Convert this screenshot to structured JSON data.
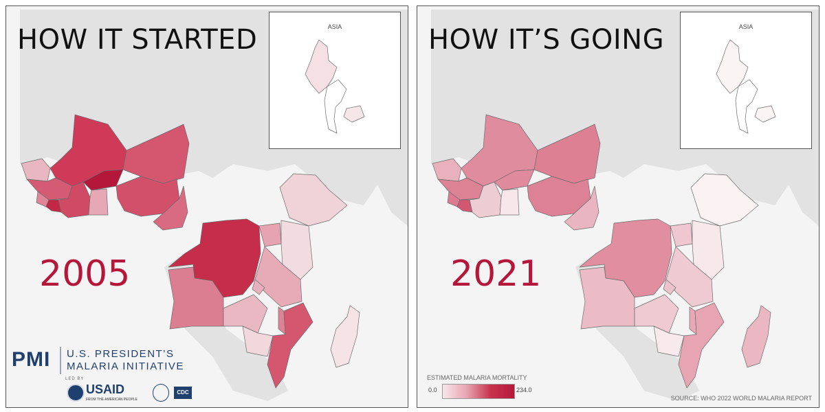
{
  "panels": [
    {
      "headline": "HOW IT STARTED",
      "year": "2005",
      "inset_label": "ASIA",
      "fills": {
        "senegal": "#e9b7c1",
        "mali": "#cf3a58",
        "niger": "#d4566f",
        "guinea": "#d55a73",
        "sierra_leone": "#e08598",
        "liberia": "#c22845",
        "ivory_coast": "#d14a65",
        "burkina_faso": "#b5173b",
        "ghana": "#e7a8b5",
        "nigeria": "#d2506a",
        "cameroon": "#d86b81",
        "drc": "#c52d4a",
        "angola": "#dc7e92",
        "ethiopia": "#f0d3d9",
        "uganda": "#e6a4b2",
        "kenya": "#f3dce1",
        "tanzania": "#e7aab7",
        "zambia": "#eab8c3",
        "rwanda": "#e8afbc",
        "malawi": "#de8296",
        "mozambique": "#d4566f",
        "zimbabwe": "#f2d7dd",
        "madagascar": "#f5e3e7",
        "myanmar": "#f4e0e5",
        "thailand": "#ffffff",
        "cambodia": "#f6e5e9"
      }
    },
    {
      "headline": "HOW IT’S GOING",
      "year": "2021",
      "inset_label": "ASIA",
      "fills": {
        "senegal": "#e8b1bd",
        "mali": "#e08c9f",
        "niger": "#dd8094",
        "guinea": "#dd8195",
        "sierra_leone": "#dc7b90",
        "liberia": "#d25773",
        "ivory_coast": "#eeccd4",
        "burkina_faso": "#df8a9d",
        "ghana": "#f7e7ea",
        "nigeria": "#dd8296",
        "cameroon": "#e9b5c1",
        "drc": "#e08ea0",
        "angola": "#ebbcc6",
        "ethiopia": "#fbf2f4",
        "uganda": "#eec7d0",
        "kenya": "#f7e8eb",
        "tanzania": "#efcad3",
        "zambia": "#efcad3",
        "rwanda": "#eec2cc",
        "malawi": "#e8a8b7",
        "mozambique": "#e7a5b4",
        "zimbabwe": "#f8e9ec",
        "madagascar": "#eab7c2",
        "myanmar": "#fbf4f5",
        "thailand": "#ffffff",
        "cambodia": "#fbf4f5"
      }
    }
  ],
  "legend": {
    "title": "ESTIMATED MALARIA MORTALITY",
    "min": "0.0",
    "max": "234.0",
    "min_value": 0.0,
    "max_value": 234.0,
    "color_low": "#f8e7ea",
    "color_high": "#b5173b"
  },
  "source": "SOURCE: WHO 2022 WORLD MALARIA REPORT",
  "logos": {
    "pmi_mark": "PMI",
    "pmi_line1": "U.S. PRESIDENT’S",
    "pmi_line2": "MALARIA INITIATIVE",
    "led_by": "LED BY",
    "usaid": "USAID",
    "usaid_tagline": "FROM THE AMERICAN PEOPLE",
    "cdc": "CDC",
    "hhs_icon": "hhs-eagle-icon",
    "usaid_seal_icon": "usaid-seal-icon"
  }
}
